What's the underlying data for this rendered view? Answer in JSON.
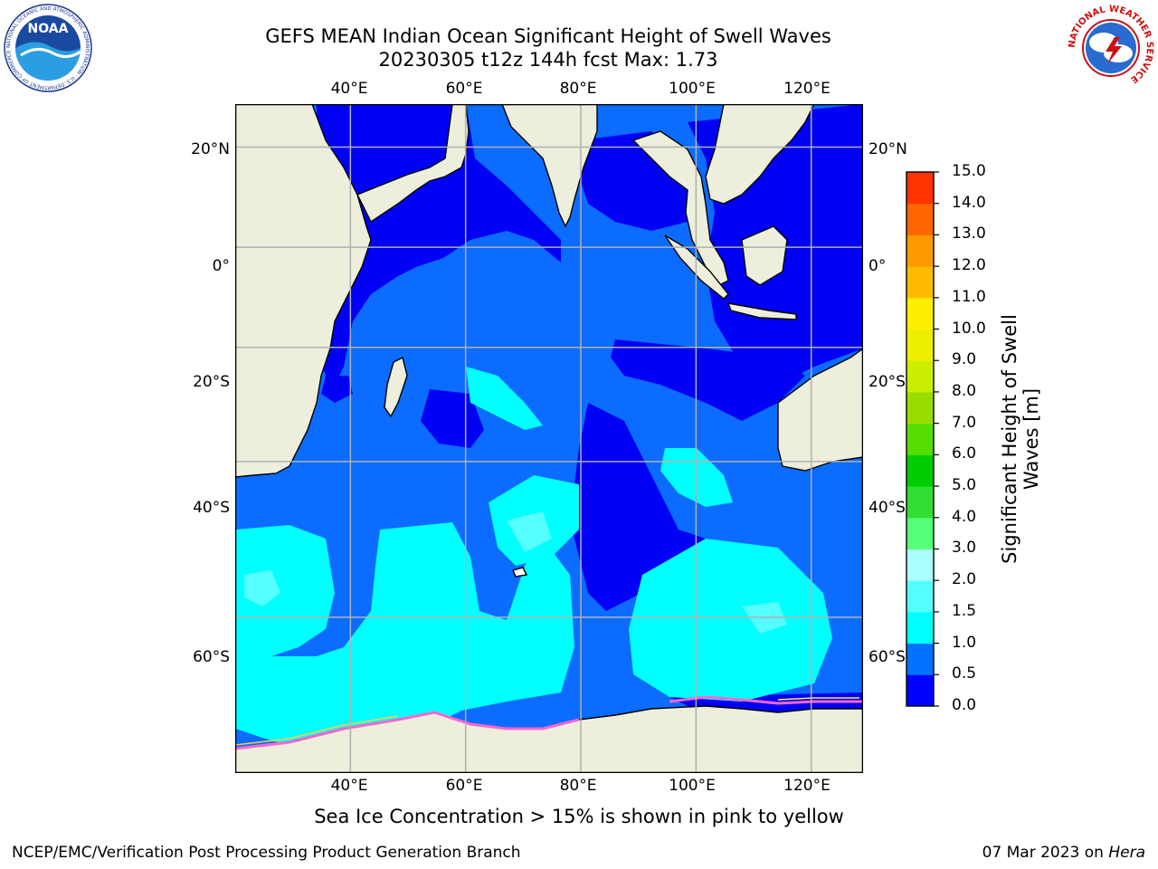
{
  "title": {
    "line1": "GEFS MEAN Indian Ocean Significant Height of Swell Waves",
    "line2": "20230305 t12z 144h fcst   Max: 1.73"
  },
  "map": {
    "lon_labels": [
      "40°E",
      "60°E",
      "80°E",
      "100°E",
      "120°E"
    ],
    "lat_labels": [
      "20°N",
      "0°",
      "20°S",
      "40°S",
      "60°S"
    ],
    "lon_values": [
      40,
      60,
      80,
      100,
      120
    ],
    "lat_values": [
      20,
      0,
      -20,
      -40,
      -60
    ],
    "extent": {
      "lon_min": 20,
      "lon_max": 129,
      "lat_min": -72.5,
      "lat_max": 28
    },
    "colors": {
      "land": "#eeeedd",
      "ice_shelf": "#ffffff",
      "swell_0_0p5": "#0000f5",
      "swell_0p5_1": "#0b6cff",
      "swell_1_1p5": "#00ffff",
      "swell_1p5_2": "#55ffff",
      "swell_2_3": "#aaffff",
      "sea_ice": "#ff66cc",
      "grid": "#b0b0b0"
    }
  },
  "colorbar": {
    "label": "Significant Height of Swell Waves [m]",
    "ticks": [
      "0.0",
      "0.5",
      "1.0",
      "1.5",
      "2.0",
      "3.0",
      "4.0",
      "5.0",
      "6.0",
      "7.0",
      "8.0",
      "9.0",
      "10.0",
      "11.0",
      "12.0",
      "13.0",
      "14.0",
      "15.0"
    ],
    "colors": [
      "#0000ff",
      "#0072ff",
      "#00ffff",
      "#55ffff",
      "#aaffff",
      "#55ff77",
      "#33dd33",
      "#00cc00",
      "#55dd00",
      "#99dd00",
      "#ccee00",
      "#eeee00",
      "#ffee00",
      "#ffbb00",
      "#ff9900",
      "#ff6600",
      "#ff3300",
      "#ff0000"
    ]
  },
  "caption": "Sea Ice Concentration > 15% is shown in pink to yellow",
  "footer": {
    "left": "NCEP/EMC/Verification Post Processing Product Generation Branch",
    "right_prefix": "07 Mar 2023 on ",
    "right_machine": "Hera"
  },
  "logos": {
    "noaa": {
      "text": "NOAA",
      "ring": "NATIONAL OCEANIC AND ATMOSPHERIC ADMINISTRATION · U.S. DEPARTMENT OF COMMERCE"
    },
    "nws": {
      "ring": "NATIONAL WEATHER SERVICE"
    }
  }
}
